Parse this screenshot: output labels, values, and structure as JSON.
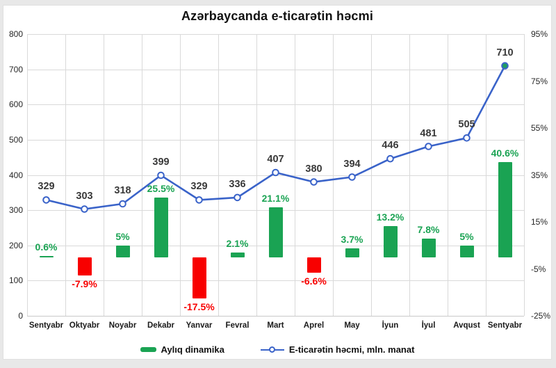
{
  "title": "Azərbaycanda e-ticarətin həcmi",
  "legend": {
    "items": [
      {
        "label": "Aylıq dinamika",
        "swatch": "bar"
      },
      {
        "label": "E-ticarətin həcmi, mln. manat",
        "swatch": "line-marker"
      }
    ]
  },
  "colors": {
    "bar_positive": "#1aa353",
    "bar_negative": "#f80000",
    "line": "#3a63c9",
    "marker_fill": "#ffffff",
    "last_marker_fill": "#1f9e60",
    "grid": "#d9d9d9",
    "axis_text": "#262626",
    "value_label": "#3a3a3a",
    "frame": "#e8e8e8"
  },
  "chart_data": {
    "type": "combo",
    "title": "Azərbaycanda e-ticarətin həcmi",
    "categories": [
      "Sentyabr",
      "Oktyabr",
      "Noyabr",
      "Dekabr",
      "Yanvar",
      "Fevral",
      "Mart",
      "Aprel",
      "May",
      "İyun",
      "İyul",
      "Avqust",
      "Sentyabr"
    ],
    "series": [
      {
        "name": "Aylıq dinamika",
        "type": "bar",
        "axis": "right",
        "unit": "%",
        "values": [
          0.6,
          -7.9,
          5,
          25.5,
          -17.5,
          2.1,
          21.1,
          -6.6,
          3.7,
          13.2,
          7.8,
          5,
          40.6
        ],
        "value_labels": [
          "0.6%",
          "-7.9%",
          "5%",
          "25.5%",
          "-17.5%",
          "2.1%",
          "21.1%",
          "-6.6%",
          "3.7%",
          "13.2%",
          "7.8%",
          "5%",
          "40.6%"
        ]
      },
      {
        "name": "E-ticarətin həcmi, mln. manat",
        "type": "line",
        "axis": "left",
        "unit": "mln. manat",
        "values": [
          329,
          303,
          318,
          399,
          329,
          336,
          407,
          380,
          394,
          446,
          481,
          505,
          710
        ],
        "value_labels": [
          "329",
          "303",
          "318",
          "399",
          "329",
          "336",
          "407",
          "380",
          "394",
          "446",
          "481",
          "505",
          "710"
        ]
      }
    ],
    "left_axis": {
      "min": 0,
      "max": 800,
      "step": 100,
      "tick_labels": [
        "0",
        "100",
        "200",
        "300",
        "400",
        "500",
        "600",
        "700",
        "800"
      ]
    },
    "right_axis": {
      "min": -25,
      "max": 95,
      "step": 20,
      "tick_labels": [
        "-25%",
        "-5%",
        "15%",
        "35%",
        "55%",
        "75%",
        "95%"
      ]
    },
    "grid": true,
    "legend_position": "bottom"
  }
}
